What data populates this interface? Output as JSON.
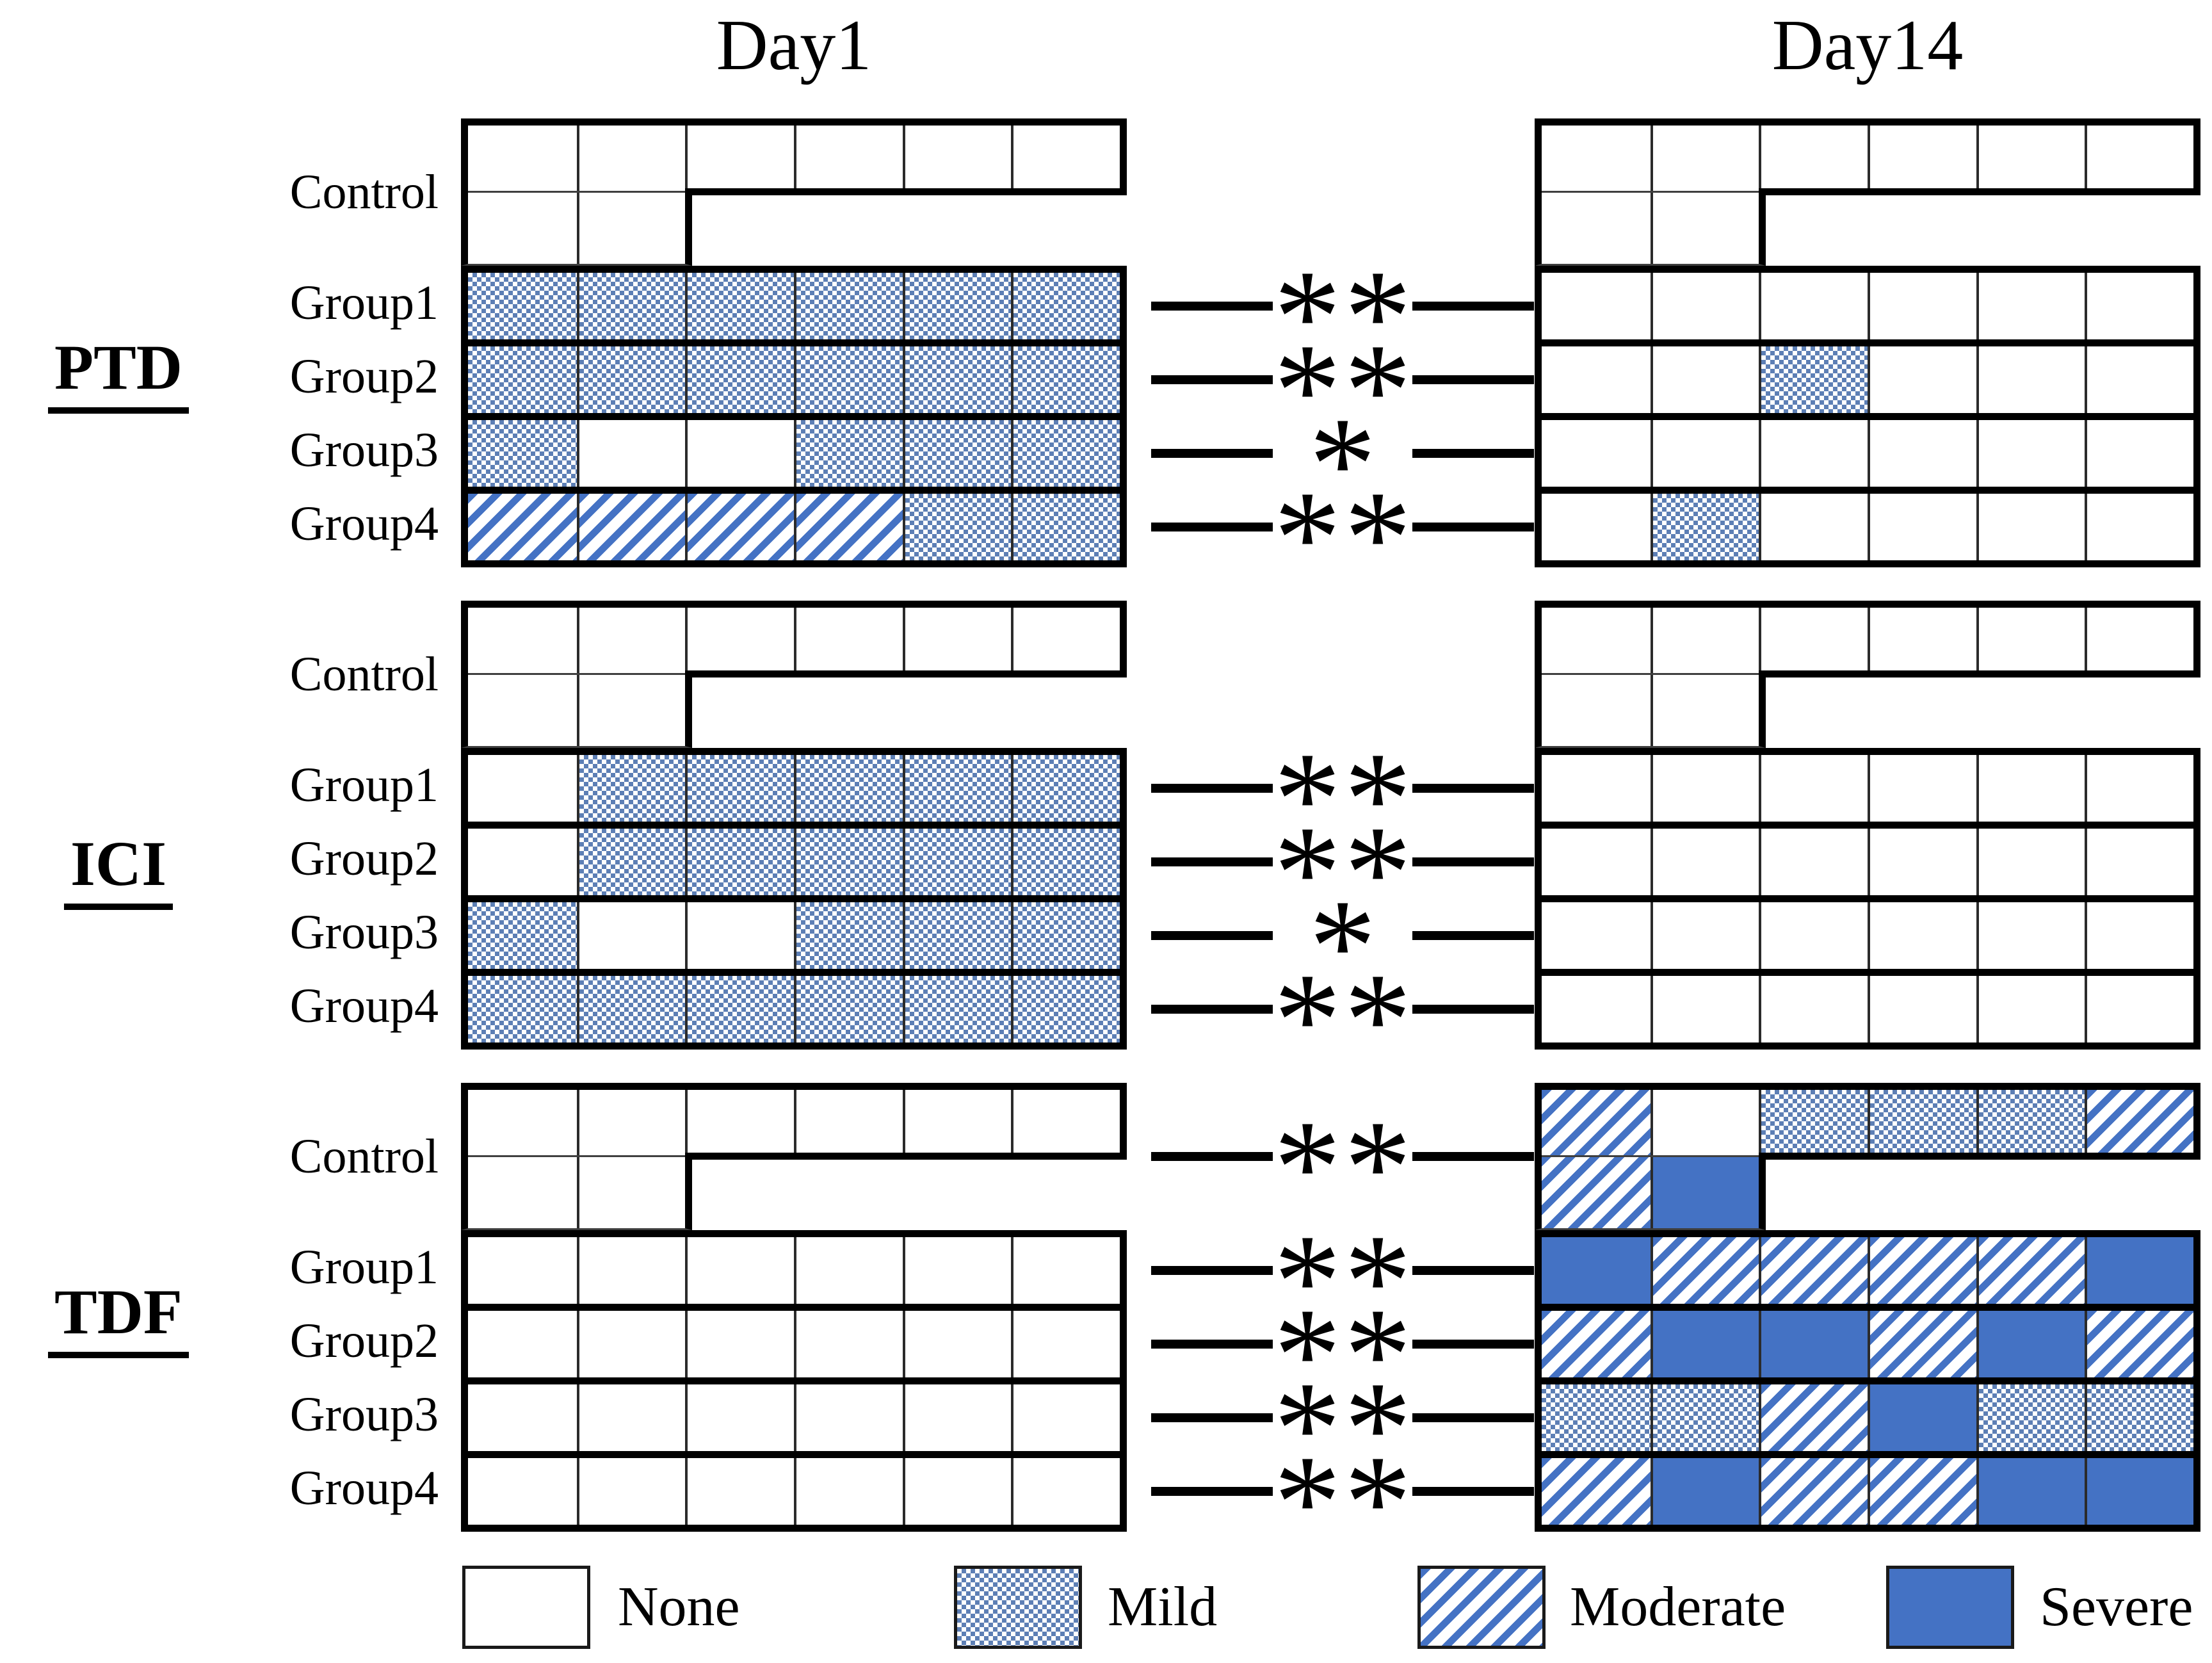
{
  "chart_data": {
    "type": "heatmap",
    "columns": [
      "Day1",
      "Day14"
    ],
    "legend_items": [
      {
        "key": "none",
        "label": "None"
      },
      {
        "key": "mild",
        "label": "Mild"
      },
      {
        "key": "moderate",
        "label": "Moderate"
      },
      {
        "key": "severe",
        "label": "Severe"
      }
    ],
    "severity_levels": [
      "none",
      "mild",
      "moderate",
      "severe"
    ],
    "colors": {
      "severe_fill": "#4472C4",
      "stripe_blue": "#4472C4",
      "mild_check_blue": "#5d7fb5",
      "border_black": "#000000",
      "gridline_gray": "#3f3f3f"
    },
    "sections": [
      {
        "name": "PTD",
        "rows": [
          {
            "label": "Control",
            "control": true,
            "significance": null,
            "day1": {
              "row1": [
                "none",
                "none",
                "none",
                "none",
                "none",
                "none"
              ],
              "row2": [
                "none",
                "none"
              ]
            },
            "day14": {
              "row1": [
                "none",
                "none",
                "none",
                "none",
                "none",
                "none"
              ],
              "row2": [
                "none",
                "none"
              ]
            }
          },
          {
            "label": "Group1",
            "control": false,
            "significance": "**",
            "day1": [
              "mild",
              "mild",
              "mild",
              "mild",
              "mild",
              "mild"
            ],
            "day14": [
              "none",
              "none",
              "none",
              "none",
              "none",
              "none"
            ]
          },
          {
            "label": "Group2",
            "control": false,
            "significance": "**",
            "day1": [
              "mild",
              "mild",
              "mild",
              "mild",
              "mild",
              "mild"
            ],
            "day14": [
              "none",
              "none",
              "mild",
              "none",
              "none",
              "none"
            ]
          },
          {
            "label": "Group3",
            "control": false,
            "significance": "*",
            "day1": [
              "mild",
              "none",
              "none",
              "mild",
              "mild",
              "mild"
            ],
            "day14": [
              "none",
              "none",
              "none",
              "none",
              "none",
              "none"
            ]
          },
          {
            "label": "Group4",
            "control": false,
            "significance": "**",
            "day1": [
              "moderate",
              "moderate",
              "moderate",
              "moderate",
              "mild",
              "mild"
            ],
            "day14": [
              "none",
              "mild",
              "none",
              "none",
              "none",
              "none"
            ]
          }
        ]
      },
      {
        "name": "ICI",
        "rows": [
          {
            "label": "Control",
            "control": true,
            "significance": null,
            "day1": {
              "row1": [
                "none",
                "none",
                "none",
                "none",
                "none",
                "none"
              ],
              "row2": [
                "none",
                "none"
              ]
            },
            "day14": {
              "row1": [
                "none",
                "none",
                "none",
                "none",
                "none",
                "none"
              ],
              "row2": [
                "none",
                "none"
              ]
            }
          },
          {
            "label": "Group1",
            "control": false,
            "significance": "**",
            "day1": [
              "none",
              "mild",
              "mild",
              "mild",
              "mild",
              "mild"
            ],
            "day14": [
              "none",
              "none",
              "none",
              "none",
              "none",
              "none"
            ]
          },
          {
            "label": "Group2",
            "control": false,
            "significance": "**",
            "day1": [
              "none",
              "mild",
              "mild",
              "mild",
              "mild",
              "mild"
            ],
            "day14": [
              "none",
              "none",
              "none",
              "none",
              "none",
              "none"
            ]
          },
          {
            "label": "Group3",
            "control": false,
            "significance": "*",
            "day1": [
              "mild",
              "none",
              "none",
              "mild",
              "mild",
              "mild"
            ],
            "day14": [
              "none",
              "none",
              "none",
              "none",
              "none",
              "none"
            ]
          },
          {
            "label": "Group4",
            "control": false,
            "significance": "**",
            "day1": [
              "mild",
              "mild",
              "mild",
              "mild",
              "mild",
              "mild"
            ],
            "day14": [
              "none",
              "none",
              "none",
              "none",
              "none",
              "none"
            ]
          }
        ]
      },
      {
        "name": "TDF",
        "rows": [
          {
            "label": "Control",
            "control": true,
            "significance": "**",
            "day1": {
              "row1": [
                "none",
                "none",
                "none",
                "none",
                "none",
                "none"
              ],
              "row2": [
                "none",
                "none"
              ]
            },
            "day14": {
              "row1": [
                "moderate",
                "none",
                "mild",
                "mild",
                "mild",
                "moderate"
              ],
              "row2": [
                "moderate",
                "severe"
              ]
            }
          },
          {
            "label": "Group1",
            "control": false,
            "significance": "**",
            "day1": [
              "none",
              "none",
              "none",
              "none",
              "none",
              "none"
            ],
            "day14": [
              "severe",
              "moderate",
              "moderate",
              "moderate",
              "moderate",
              "severe"
            ]
          },
          {
            "label": "Group2",
            "control": false,
            "significance": "**",
            "day1": [
              "none",
              "none",
              "none",
              "none",
              "none",
              "none"
            ],
            "day14": [
              "moderate",
              "severe",
              "severe",
              "moderate",
              "severe",
              "moderate"
            ]
          },
          {
            "label": "Group3",
            "control": false,
            "significance": "**",
            "day1": [
              "none",
              "none",
              "none",
              "none",
              "none",
              "none"
            ],
            "day14": [
              "mild",
              "mild",
              "moderate",
              "severe",
              "mild",
              "mild"
            ]
          },
          {
            "label": "Group4",
            "control": false,
            "significance": "**",
            "day1": [
              "none",
              "none",
              "none",
              "none",
              "none",
              "none"
            ],
            "day14": [
              "moderate",
              "severe",
              "moderate",
              "moderate",
              "severe",
              "severe"
            ]
          }
        ]
      }
    ]
  }
}
